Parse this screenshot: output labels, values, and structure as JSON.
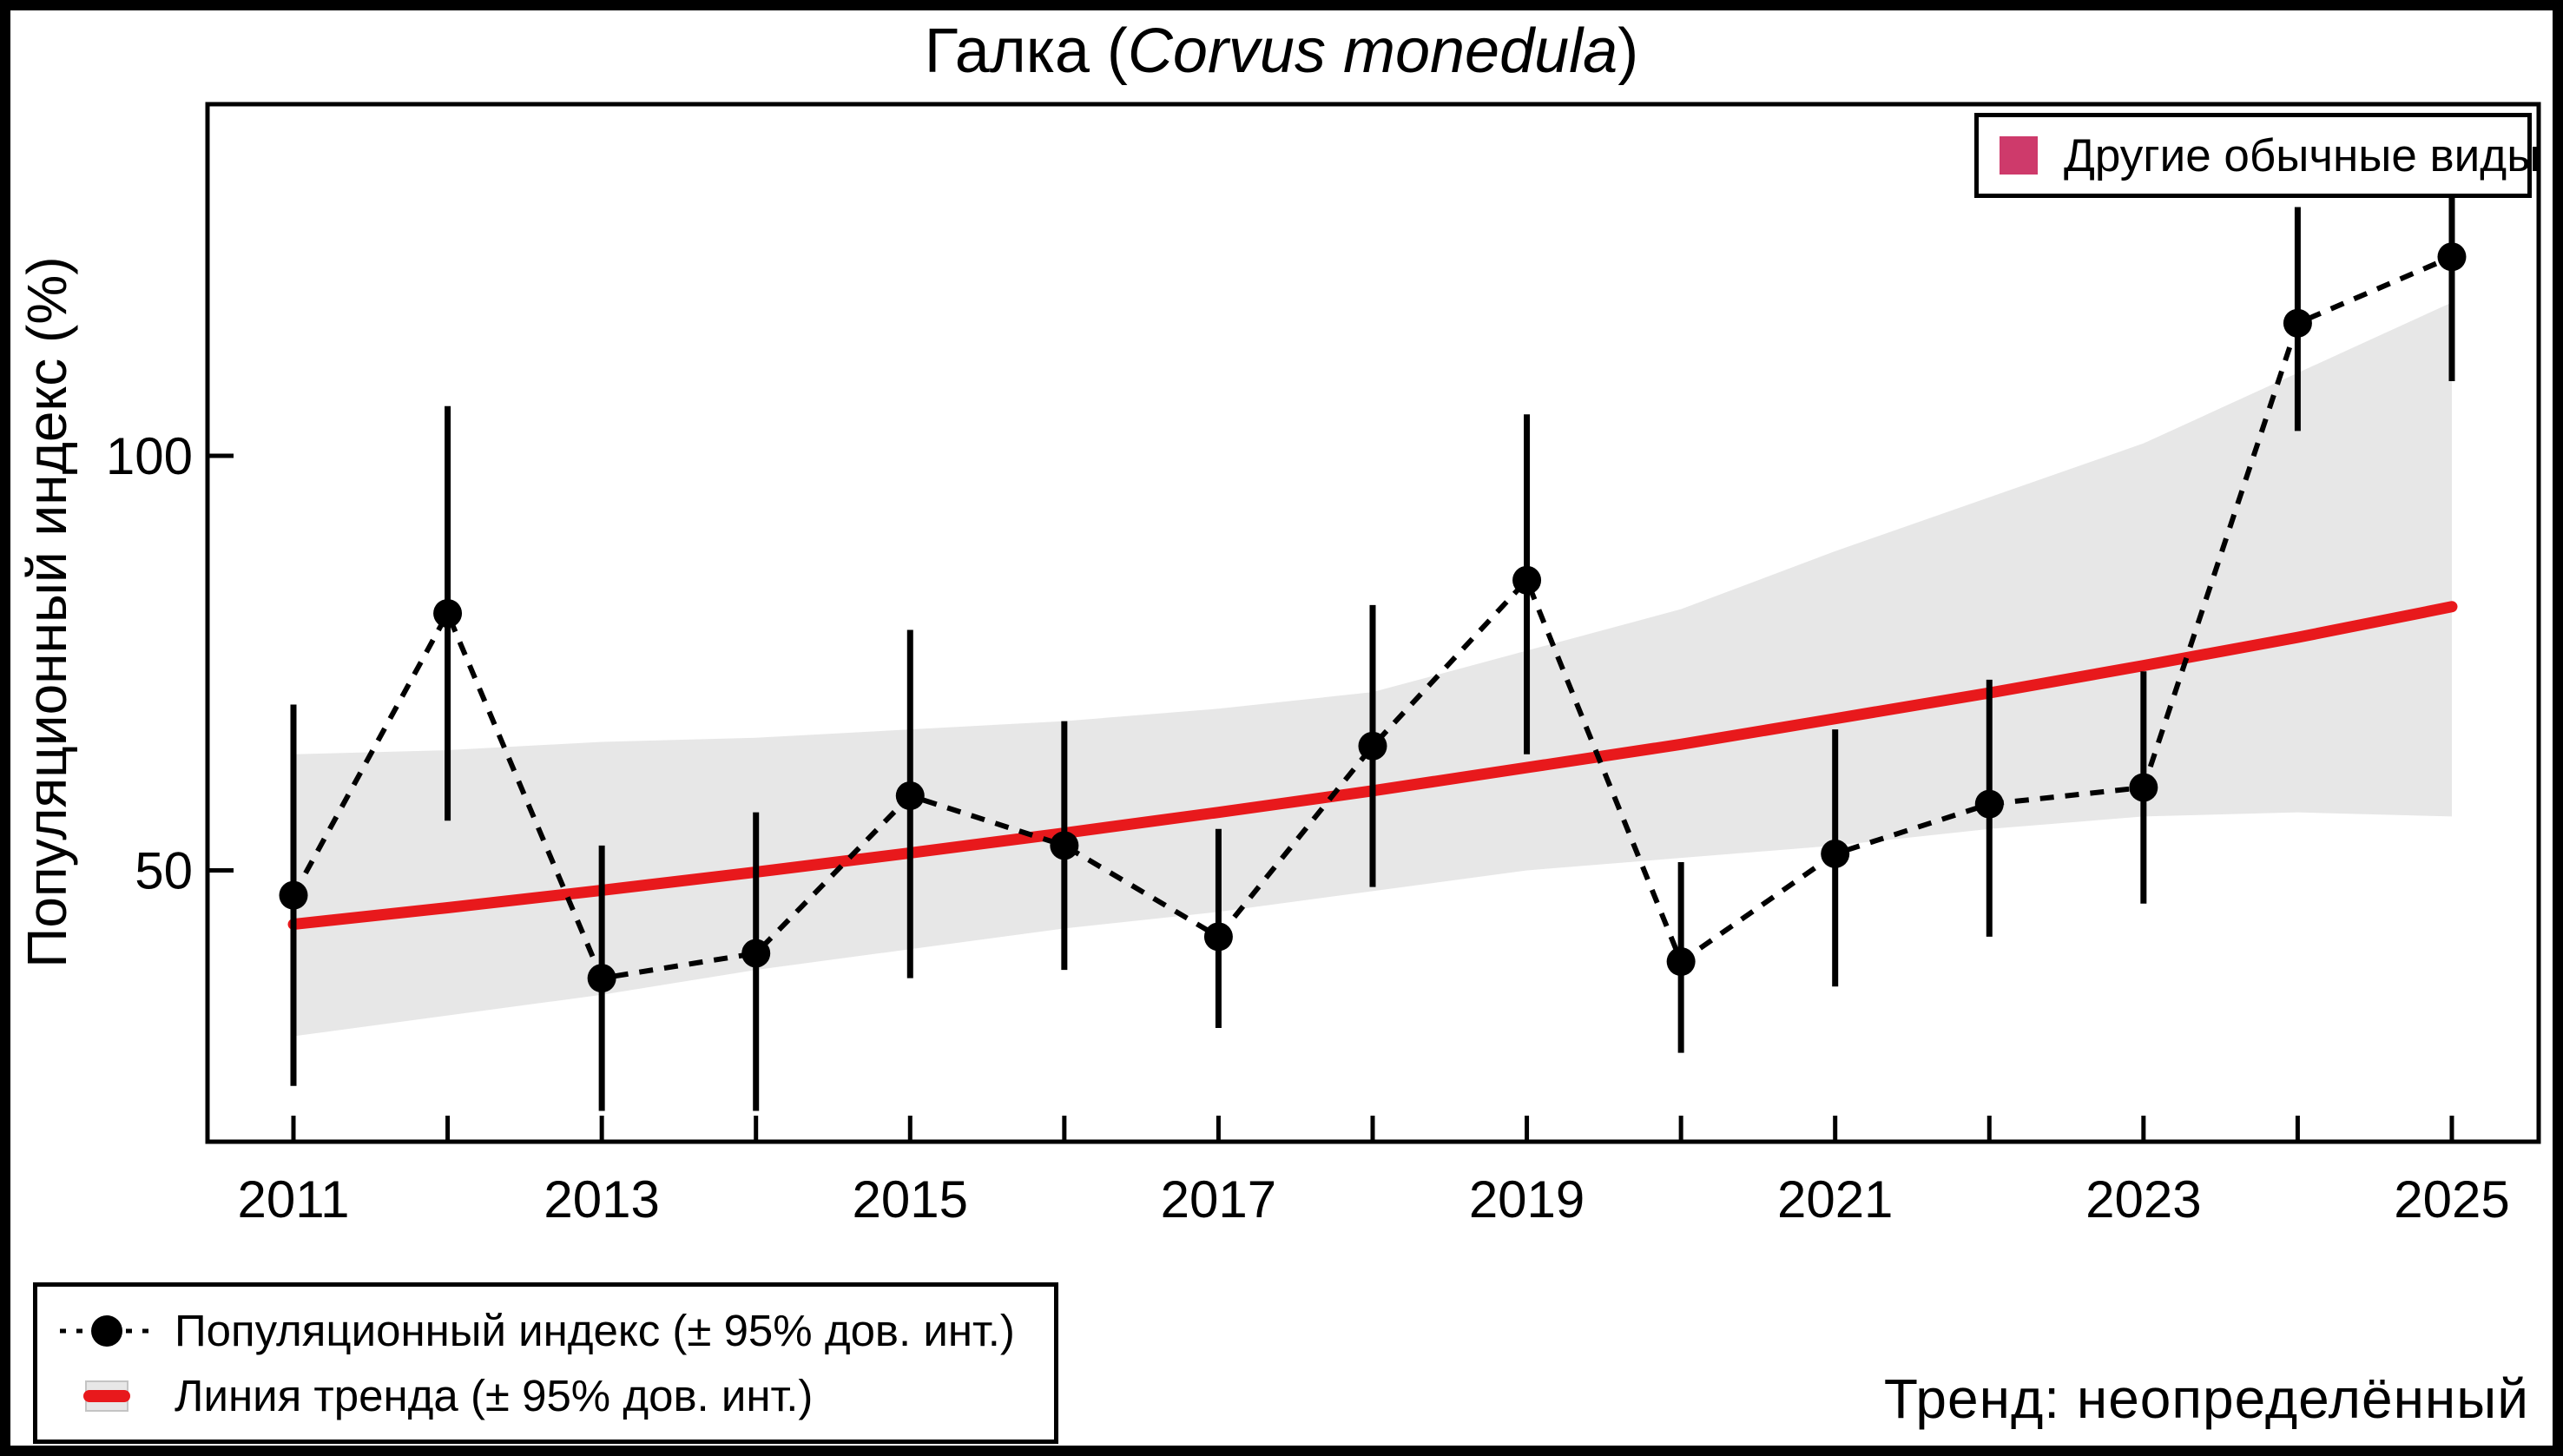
{
  "title": {
    "prefix": "Галка (",
    "species": "Corvus monedula",
    "suffix": ")"
  },
  "axes": {
    "y_label": "Популяционный индекс (%)",
    "y_ticks": [
      50,
      100
    ],
    "x_tick_labels": [
      2011,
      2013,
      2015,
      2017,
      2019,
      2021,
      2023,
      2025
    ]
  },
  "legend_top": {
    "label": "Другие обычные виды"
  },
  "legend_bottom": {
    "index_label": "Популяционный индекс (± 95% дов. инт.)",
    "trend_label": "Линия тренда (± 95% дов. инт.)"
  },
  "trend_note": "Тренд: неопределённый",
  "colors": {
    "trend_line": "#E8191C",
    "band": "#E7E7E7",
    "points": "#000000",
    "other_species_swatch": "#CE3A6B"
  },
  "chart_data": {
    "type": "line",
    "title": "Галка (Corvus monedula)",
    "xlabel": "",
    "ylabel": "Популяционный индекс (%)",
    "x": [
      2011,
      2012,
      2013,
      2014,
      2015,
      2016,
      2017,
      2018,
      2019,
      2020,
      2021,
      2022,
      2023,
      2024,
      2025
    ],
    "xlim": [
      2010.45,
      2025.55
    ],
    "ylim": [
      17,
      142
    ],
    "y_ticks": [
      50,
      100
    ],
    "x_tick_labels": [
      2011,
      2013,
      2015,
      2017,
      2019,
      2021,
      2023,
      2025
    ],
    "grid": false,
    "legend_position": "bottom-left",
    "series": [
      {
        "name": "Популяционный индекс (± 95% дов. инт.)",
        "style": "points-dotted-line-errorbars",
        "color": "#000000",
        "values": [
          47,
          81,
          37,
          40,
          59,
          53,
          42,
          65,
          85,
          39,
          52,
          58,
          60,
          116,
          124
        ],
        "ci_low": [
          24,
          56,
          21,
          21,
          37,
          38,
          31,
          48,
          64,
          28,
          36,
          42,
          46,
          103,
          109
        ],
        "ci_high": [
          70,
          106,
          53,
          57,
          79,
          68,
          55,
          82,
          105,
          51,
          67,
          73,
          74,
          130,
          132
        ]
      },
      {
        "name": "Линия тренда (± 95% дов. инт.)",
        "style": "line-with-confidence-band",
        "color": "#E8191C",
        "band_color": "#E7E7E7",
        "values": [
          43.5,
          45.5,
          47.6,
          49.8,
          52.1,
          54.5,
          57.0,
          59.6,
          62.4,
          65.2,
          68.3,
          71.4,
          74.7,
          78.1,
          81.8
        ],
        "band_low": [
          30,
          32.5,
          35,
          38,
          40.5,
          43,
          45,
          47.5,
          50,
          51.5,
          53,
          55,
          56.5,
          57,
          56.5
        ],
        "band_high": [
          64,
          64.5,
          65.5,
          66,
          67,
          68,
          69.5,
          71.5,
          76.5,
          81.5,
          88.5,
          95,
          101.5,
          110,
          118.5
        ]
      }
    ]
  }
}
